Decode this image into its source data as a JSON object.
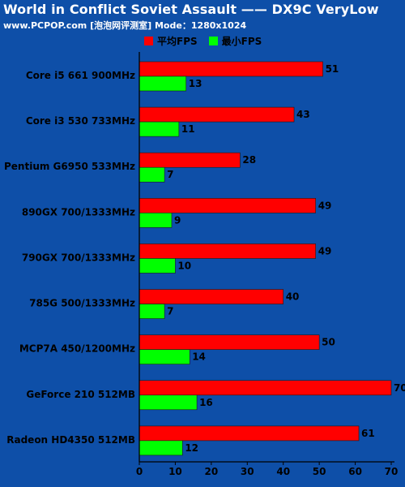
{
  "header": {
    "title": "World in Conflict Soviet Assault —— DX9C VeryLow",
    "subtitle": "www.PCPOP.com [泡泡网评测室] Mode：1280x1024"
  },
  "colors": {
    "background": "#0e4fa8",
    "avg": "#ff0000",
    "min": "#00ff00"
  },
  "chart_data": {
    "type": "bar",
    "orientation": "horizontal",
    "categories": [
      "Core i5 661 900MHz",
      "Core i3 530 733MHz",
      "Pentium G6950 533MHz",
      "890GX 700/1333MHz",
      "790GX 700/1333MHz",
      "785G 500/1333MHz",
      "MCP7A 450/1200MHz",
      "GeForce 210 512MB",
      "Radeon HD4350 512MB"
    ],
    "series": [
      {
        "name": "平均FPS",
        "values": [
          51,
          43,
          28,
          49,
          49,
          40,
          50,
          70,
          61
        ]
      },
      {
        "name": "最小FPS",
        "values": [
          13,
          11,
          7,
          9,
          10,
          7,
          14,
          16,
          12
        ]
      }
    ],
    "xlim": [
      0,
      70
    ],
    "xticks": [
      0,
      10,
      20,
      30,
      40,
      50,
      60,
      70
    ],
    "data_labels": true,
    "grid": false,
    "legend_position": "top"
  }
}
